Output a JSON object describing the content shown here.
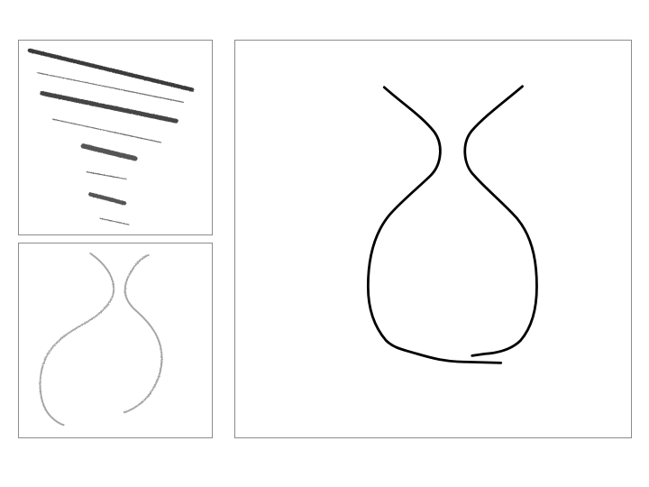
{
  "figure": {
    "panels": [
      {
        "id": "pencil-stroke-samples",
        "stroke_count": 8
      },
      {
        "id": "pencil-sketch-vase"
      },
      {
        "id": "clean-outline-vase"
      }
    ],
    "colors": {
      "background": "#ffffff",
      "frame": "#8c8c8c",
      "pencil_dark": "#3a3a3a",
      "pencil_mid": "#6e6e6e",
      "pencil_light": "#a6a6a6",
      "ink": "#000000"
    }
  }
}
